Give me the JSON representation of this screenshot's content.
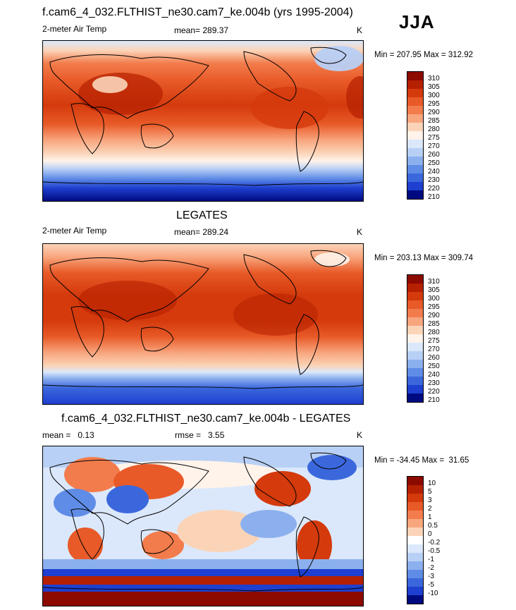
{
  "corner_label": "JJA",
  "panels": [
    {
      "title": "f.cam6_4_032.FLTHIST_ne30.cam7_ke.004b (yrs 1995-2004)",
      "variable": "2-meter Air Temp",
      "stat": "mean= 289.37",
      "units": "K",
      "minmax": "Min = 207.95 Max = 312.92",
      "colorbar_labels": [
        "310",
        "305",
        "300",
        "295",
        "290",
        "285",
        "280",
        "275",
        "270",
        "260",
        "250",
        "240",
        "230",
        "220",
        "210"
      ]
    },
    {
      "title": "LEGATES",
      "variable": "2-meter Air Temp",
      "stat": "mean= 289.24",
      "units": "K",
      "minmax": "Min = 203.13 Max = 309.74",
      "colorbar_labels": [
        "310",
        "305",
        "300",
        "295",
        "290",
        "285",
        "280",
        "275",
        "270",
        "260",
        "250",
        "240",
        "230",
        "220",
        "210"
      ]
    },
    {
      "title": "f.cam6_4_032.FLTHIST_ne30.cam7_ke.004b - LEGATES",
      "stat_left": "mean =   0.13",
      "stat_right": "rmse =   3.55",
      "units": "K",
      "minmax": "Min = -34.45 Max =  31.65",
      "colorbar_labels": [
        "10",
        "5",
        "3",
        "2",
        "1",
        "0.5",
        "0",
        "-0.2",
        "-0.5",
        "-1",
        "-2",
        "-3",
        "-5",
        "-10"
      ]
    }
  ],
  "colors": {
    "abs_scale": [
      "#8c0a00",
      "#b52000",
      "#d43a0c",
      "#e85a28",
      "#f27c4c",
      "#f8a67e",
      "#fbd4b8",
      "#fff3ea",
      "#dbe8fb",
      "#b8d0f5",
      "#8cb0ee",
      "#5f8ce6",
      "#3b67dd",
      "#1e3fcf",
      "#0f1fb0",
      "#000a80"
    ],
    "diff_scale": [
      "#8c0a00",
      "#b52000",
      "#d43a0c",
      "#e85a28",
      "#f27c4c",
      "#f8a67e",
      "#fbd4b8",
      "#ffffff",
      "#dbe8fb",
      "#b8d0f5",
      "#8cb0ee",
      "#5f8ce6",
      "#3b67dd",
      "#1e3fcf",
      "#000a80"
    ]
  }
}
